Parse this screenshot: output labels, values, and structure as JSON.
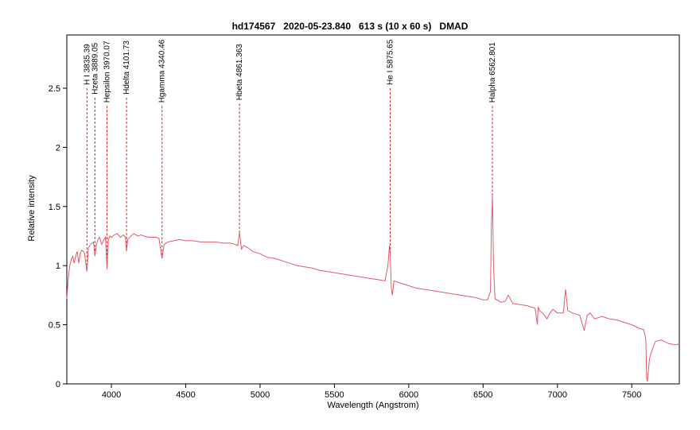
{
  "chart_data": {
    "type": "line",
    "title": "hd174567   2020-05-23.840   613 s (10 x 60 s)   DMAD",
    "xlabel": "Wavelength (Angstrom)",
    "ylabel": "Relative intensity",
    "xlim": [
      3700,
      7820
    ],
    "ylim": [
      0,
      2.95
    ],
    "xticks": [
      4000,
      4500,
      5000,
      5500,
      6000,
      6500,
      7000,
      7500
    ],
    "xtick_labels": [
      "4000",
      "4500",
      "5000",
      "5500",
      "6000",
      "6500",
      "7000",
      "7500"
    ],
    "yticks": [
      0,
      0.5,
      1,
      1.5,
      2,
      2.5
    ],
    "ytick_labels": [
      "0",
      "0.5",
      "1",
      "1.5",
      "2",
      "2.5"
    ],
    "grid": false,
    "series_color": "#e05a6a",
    "marker_color": "#d62020",
    "series": [
      {
        "x": [
          3700,
          3710,
          3720,
          3730,
          3740,
          3750,
          3760,
          3770,
          3780,
          3790,
          3800,
          3810,
          3820,
          3835,
          3845,
          3860,
          3880,
          3889,
          3900,
          3910,
          3920,
          3935,
          3950,
          3960,
          3970,
          3980,
          3990,
          4000,
          4020,
          4040,
          4060,
          4080,
          4095,
          4101,
          4110,
          4130,
          4150,
          4180,
          4200,
          4220,
          4250,
          4280,
          4300,
          4320,
          4340,
          4355,
          4380,
          4420,
          4460,
          4500,
          4550,
          4600,
          4650,
          4700,
          4750,
          4800,
          4830,
          4850,
          4861,
          4875,
          4890,
          4920,
          4950,
          5000,
          5050,
          5100,
          5150,
          5200,
          5250,
          5300,
          5350,
          5400,
          5450,
          5500,
          5550,
          5600,
          5650,
          5700,
          5750,
          5800,
          5840,
          5860,
          5870,
          5876,
          5882,
          5890,
          5900,
          5950,
          6000,
          6050,
          6100,
          6150,
          6200,
          6250,
          6300,
          6350,
          6400,
          6450,
          6500,
          6530,
          6550,
          6556,
          6563,
          6570,
          6580,
          6620,
          6650,
          6670,
          6700,
          6750,
          6800,
          6850,
          6865,
          6870,
          6880,
          6900,
          6930,
          6950,
          6970,
          7000,
          7040,
          7055,
          7070,
          7100,
          7150,
          7180,
          7200,
          7220,
          7250,
          7300,
          7350,
          7400,
          7450,
          7500,
          7550,
          7580,
          7595,
          7600,
          7605,
          7620,
          7640,
          7660,
          7700,
          7750,
          7800,
          7820
        ],
        "y": [
          0.72,
          0.9,
          1.0,
          1.05,
          1.08,
          1.02,
          1.08,
          1.12,
          1.02,
          1.1,
          1.13,
          1.12,
          1.1,
          0.95,
          1.15,
          1.18,
          1.2,
          1.08,
          1.18,
          1.22,
          1.24,
          1.18,
          1.22,
          1.24,
          0.97,
          1.22,
          1.25,
          1.24,
          1.26,
          1.27,
          1.24,
          1.26,
          1.24,
          1.12,
          1.22,
          1.25,
          1.27,
          1.25,
          1.26,
          1.25,
          1.24,
          1.24,
          1.24,
          1.23,
          1.06,
          1.18,
          1.2,
          1.21,
          1.22,
          1.21,
          1.21,
          1.2,
          1.2,
          1.2,
          1.19,
          1.19,
          1.18,
          1.17,
          1.28,
          1.14,
          1.17,
          1.15,
          1.12,
          1.1,
          1.07,
          1.06,
          1.04,
          1.02,
          1.0,
          0.99,
          0.98,
          0.96,
          0.95,
          0.94,
          0.93,
          0.92,
          0.91,
          0.9,
          0.89,
          0.88,
          0.87,
          1.0,
          1.17,
          1.08,
          0.82,
          0.75,
          0.87,
          0.85,
          0.83,
          0.81,
          0.8,
          0.79,
          0.78,
          0.77,
          0.76,
          0.75,
          0.74,
          0.73,
          0.71,
          0.71,
          0.78,
          1.35,
          1.59,
          1.0,
          0.72,
          0.69,
          0.7,
          0.75,
          0.68,
          0.67,
          0.66,
          0.64,
          0.5,
          0.65,
          0.62,
          0.6,
          0.55,
          0.6,
          0.63,
          0.6,
          0.6,
          0.8,
          0.62,
          0.6,
          0.58,
          0.45,
          0.58,
          0.6,
          0.55,
          0.57,
          0.55,
          0.54,
          0.52,
          0.5,
          0.47,
          0.46,
          0.38,
          0.05,
          0.02,
          0.22,
          0.3,
          0.36,
          0.37,
          0.34,
          0.33,
          0.34
        ]
      }
    ],
    "line_markers": [
      {
        "label": "H I 3835.39",
        "x": 3835.39,
        "y_top": 2.5
      },
      {
        "label": "Hzeta 3889.05",
        "x": 3889.05,
        "y_top": 2.42
      },
      {
        "label": "Hepsilon 3970.07",
        "x": 3970.07,
        "y_top": 2.35
      },
      {
        "label": "Hdelta 4101.73",
        "x": 4101.73,
        "y_top": 2.42
      },
      {
        "label": "Hgamma 4340.46",
        "x": 4340.46,
        "y_top": 2.35
      },
      {
        "label": "Hbeta 4861.363",
        "x": 4861.363,
        "y_top": 2.37
      },
      {
        "label": "He I 5875.65",
        "x": 5875.65,
        "y_top": 2.5
      },
      {
        "label": "Halpha 6562.801",
        "x": 6562.801,
        "y_top": 2.35
      }
    ]
  }
}
